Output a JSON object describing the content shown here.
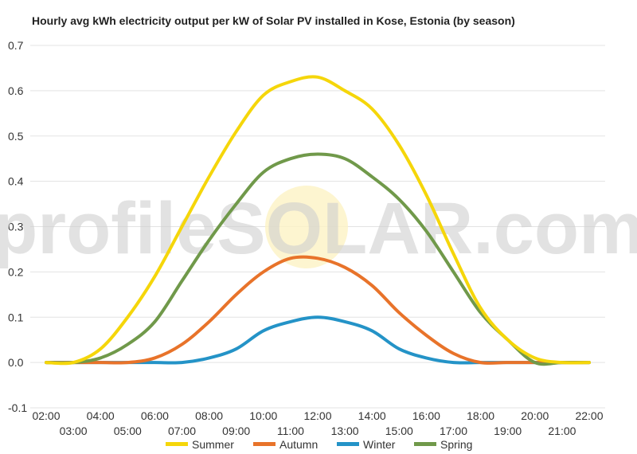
{
  "chart_data": {
    "type": "line",
    "title": "Hourly avg kWh electricity output per kW of Solar PV installed in Kose, Estonia (by season)",
    "xlabel": "",
    "ylabel": "",
    "ylim": [
      -0.1,
      0.7
    ],
    "y_ticks": [
      "-0.1",
      "0.0",
      "0.1",
      "0.2",
      "0.3",
      "0.4",
      "0.5",
      "0.6",
      "0.7"
    ],
    "x": [
      "02:00",
      "03:00",
      "04:00",
      "05:00",
      "06:00",
      "07:00",
      "08:00",
      "09:00",
      "10:00",
      "11:00",
      "12:00",
      "13:00",
      "14:00",
      "15:00",
      "16:00",
      "17:00",
      "18:00",
      "19:00",
      "20:00",
      "21:00",
      "22:00"
    ],
    "grid": true,
    "legend_position": "bottom",
    "watermark": "profileSOLAR.com",
    "series": [
      {
        "name": "Summer",
        "color": "#f5d60a",
        "values": [
          0,
          0,
          0.03,
          0.1,
          0.19,
          0.3,
          0.41,
          0.51,
          0.59,
          0.62,
          0.63,
          0.6,
          0.56,
          0.48,
          0.37,
          0.24,
          0.12,
          0.05,
          0.01,
          0,
          0
        ]
      },
      {
        "name": "Autumn",
        "color": "#e8732a",
        "values": [
          0,
          0,
          0,
          0,
          0.01,
          0.04,
          0.09,
          0.15,
          0.2,
          0.23,
          0.23,
          0.21,
          0.17,
          0.11,
          0.06,
          0.02,
          0,
          0,
          0,
          0,
          0
        ]
      },
      {
        "name": "Winter",
        "color": "#2493c7",
        "values": [
          0,
          0,
          0,
          0,
          0,
          0,
          0.01,
          0.03,
          0.07,
          0.09,
          0.1,
          0.09,
          0.07,
          0.03,
          0.01,
          0,
          0,
          0,
          0,
          0,
          0
        ]
      },
      {
        "name": "Spring",
        "color": "#70994a",
        "values": [
          0,
          0,
          0.01,
          0.04,
          0.09,
          0.18,
          0.27,
          0.35,
          0.42,
          0.45,
          0.46,
          0.45,
          0.41,
          0.36,
          0.29,
          0.2,
          0.11,
          0.05,
          0,
          0,
          0
        ]
      }
    ]
  }
}
